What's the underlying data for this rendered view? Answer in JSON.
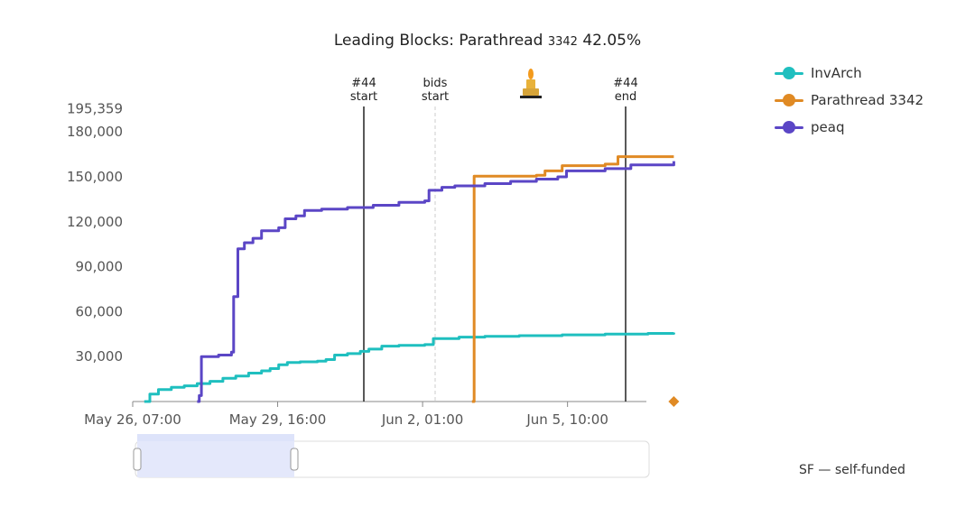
{
  "chart_data": {
    "type": "line",
    "title": "Leading Blocks:",
    "title_leader": "Parathread",
    "title_leader_id": "3342",
    "title_leader_pct": "42.05%",
    "y_ticks": [
      "195,359",
      "180,000",
      "150,000",
      "120,000",
      "90,000",
      "60,000",
      "30,000"
    ],
    "y_tick_values": [
      195359,
      180000,
      150000,
      120000,
      90000,
      60000,
      30000
    ],
    "ylim": [
      0,
      195359
    ],
    "x_ticks": [
      "May 26, 07:00",
      "May 29, 16:00",
      "Jun 2, 01:00",
      "Jun 5, 10:00"
    ],
    "grid": false,
    "legend_position": "top-right",
    "markers": [
      {
        "name": "lease-start-marker",
        "line1": "#44",
        "line2": "start",
        "style": "solid"
      },
      {
        "name": "bids-start-marker",
        "line1": "bids",
        "line2": "start",
        "style": "dashed"
      },
      {
        "name": "lease-end-marker",
        "line1": "#44",
        "line2": "end",
        "style": "solid"
      }
    ],
    "winner_icon": "candle-icon",
    "series": [
      {
        "name": "InvArch",
        "color": "#1fbfbf",
        "points": [
          [
            0.27,
            0
          ],
          [
            0.4,
            5000
          ],
          [
            0.6,
            8000
          ],
          [
            0.9,
            9500
          ],
          [
            1.2,
            10500
          ],
          [
            1.5,
            12000
          ],
          [
            1.8,
            13500
          ],
          [
            2.1,
            15500
          ],
          [
            2.4,
            17000
          ],
          [
            2.7,
            19000
          ],
          [
            3.0,
            20500
          ],
          [
            3.2,
            22000
          ],
          [
            3.4,
            24500
          ],
          [
            3.6,
            26000
          ],
          [
            3.9,
            26500
          ],
          [
            4.3,
            27000
          ],
          [
            4.5,
            28000
          ],
          [
            4.7,
            31000
          ],
          [
            5.0,
            32000
          ],
          [
            5.3,
            33500
          ],
          [
            5.5,
            35000
          ],
          [
            5.8,
            37000
          ],
          [
            6.2,
            37500
          ],
          [
            6.8,
            38000
          ],
          [
            7.0,
            42000
          ],
          [
            7.6,
            43000
          ],
          [
            8.2,
            43500
          ],
          [
            9.0,
            44000
          ],
          [
            10.0,
            44500
          ],
          [
            11.0,
            45000
          ],
          [
            12.0,
            45500
          ],
          [
            12.6,
            46000
          ]
        ]
      },
      {
        "name": "Parathread 3342",
        "color": "#e08a24",
        "points": [
          [
            7.9,
            0
          ],
          [
            7.95,
            150500
          ],
          [
            9.4,
            151000
          ],
          [
            9.6,
            154000
          ],
          [
            10.0,
            157500
          ],
          [
            11.0,
            158500
          ],
          [
            11.3,
            163500
          ],
          [
            12.6,
            163500
          ]
        ]
      },
      {
        "name": "peaq",
        "color": "#5b46c6",
        "points": [
          [
            1.5,
            0
          ],
          [
            1.55,
            4000
          ],
          [
            1.6,
            30000
          ],
          [
            2.0,
            31000
          ],
          [
            2.3,
            33000
          ],
          [
            2.35,
            70000
          ],
          [
            2.45,
            102000
          ],
          [
            2.6,
            106000
          ],
          [
            2.8,
            109000
          ],
          [
            3.0,
            114000
          ],
          [
            3.4,
            116000
          ],
          [
            3.55,
            122000
          ],
          [
            3.8,
            124000
          ],
          [
            4.0,
            127500
          ],
          [
            4.4,
            128500
          ],
          [
            5.0,
            129500
          ],
          [
            5.6,
            131000
          ],
          [
            6.2,
            133000
          ],
          [
            6.8,
            134000
          ],
          [
            6.9,
            141000
          ],
          [
            7.2,
            143000
          ],
          [
            7.5,
            144000
          ],
          [
            8.2,
            145500
          ],
          [
            8.8,
            147000
          ],
          [
            9.4,
            148500
          ],
          [
            9.9,
            150000
          ],
          [
            10.1,
            154000
          ],
          [
            11.0,
            155500
          ],
          [
            11.6,
            158000
          ],
          [
            12.6,
            160500
          ]
        ]
      }
    ],
    "winner_marker": {
      "x": 12.6,
      "y": 0
    }
  },
  "legend": [
    {
      "label": "InvArch",
      "color": "#1fbfbf"
    },
    {
      "label": "Parathread 3342",
      "color": "#e08a24"
    },
    {
      "label": "peaq",
      "color": "#5b46c6"
    }
  ],
  "range_selector": {
    "window_fraction": [
      0.0,
      0.31
    ]
  },
  "footnote": "SF — self-funded"
}
